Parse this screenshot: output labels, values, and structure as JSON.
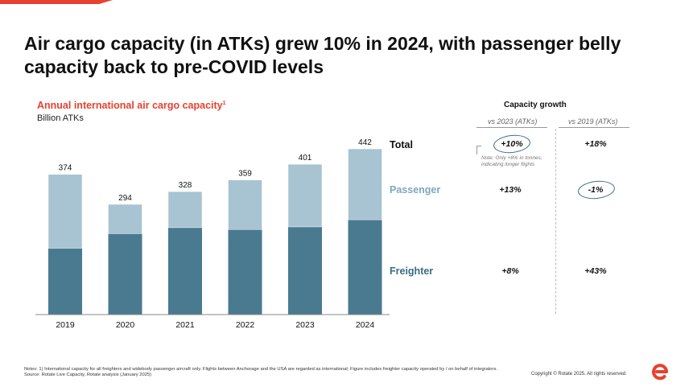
{
  "slide": {
    "title": "Air cargo capacity (in ATKs) grew 10% in 2024, with passenger belly capacity back to pre-COVID levels"
  },
  "colors": {
    "accent": "#e8412f",
    "freighter": "#4a7a90",
    "passenger": "#a8c3d1",
    "passenger_label": "#7ea8c0"
  },
  "chart_data": {
    "type": "bar",
    "stacked": true,
    "title": "Annual international air cargo capacity",
    "title_footnote": "1",
    "ylabel": "Billion ATKs",
    "categories": [
      "2019",
      "2020",
      "2021",
      "2022",
      "2023",
      "2024"
    ],
    "series": [
      {
        "name": "Freighter",
        "values": [
          177,
          216,
          232,
          227,
          234,
          253
        ]
      },
      {
        "name": "Passenger",
        "values": [
          197,
          78,
          96,
          132,
          167,
          189
        ]
      }
    ],
    "totals": [
      374,
      294,
      328,
      359,
      401,
      442
    ],
    "ylim": [
      0,
      470
    ],
    "grid": false
  },
  "series_labels": {
    "total": "Total",
    "passenger": "Passenger",
    "freighter": "Freighter"
  },
  "capacity_growth": {
    "title": "Capacity growth",
    "col1_header": "vs 2023 (ATKs)",
    "col2_header": "vs 2019 (ATKs)",
    "total": [
      "+10%",
      "+18%"
    ],
    "passenger": [
      "+13%",
      "-1%"
    ],
    "freighter": [
      "+8%",
      "+43%"
    ],
    "note": "Note: Only +8% in tonnes, indicating longer flights"
  },
  "footer": {
    "notes": "Notes: 1) International capacity for all freighters and widebody passenger aircraft only. Flights between Anchorage and the USA are regarded as international; Figure includes freighter capacity operated by / on behalf of integrators. Source: Rotate Live Capacity, Rotate analysis (January 2025)",
    "copyright": "Copyright © Rotate 2025. All rights reserved."
  }
}
